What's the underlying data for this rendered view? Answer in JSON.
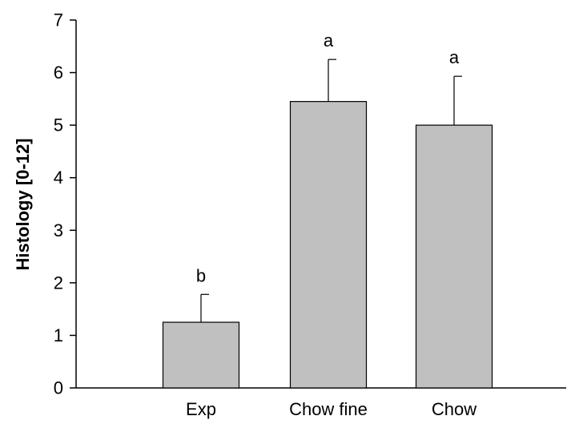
{
  "chart_data": {
    "type": "bar",
    "categories": [
      "Exp",
      "Chow fine",
      "Chow"
    ],
    "values": [
      1.25,
      5.45,
      5.0
    ],
    "error_upper": [
      1.78,
      6.25,
      5.93
    ],
    "significance_labels": [
      "b",
      "a",
      "a"
    ],
    "title": "",
    "xlabel": "",
    "ylabel": "Histology [0-12]",
    "ylim": [
      0,
      7
    ],
    "yticks": [
      0,
      1,
      2,
      3,
      4,
      5,
      6,
      7
    ],
    "grid": false,
    "bar_color": "#c0c0c0",
    "edge_color": "#000000"
  }
}
